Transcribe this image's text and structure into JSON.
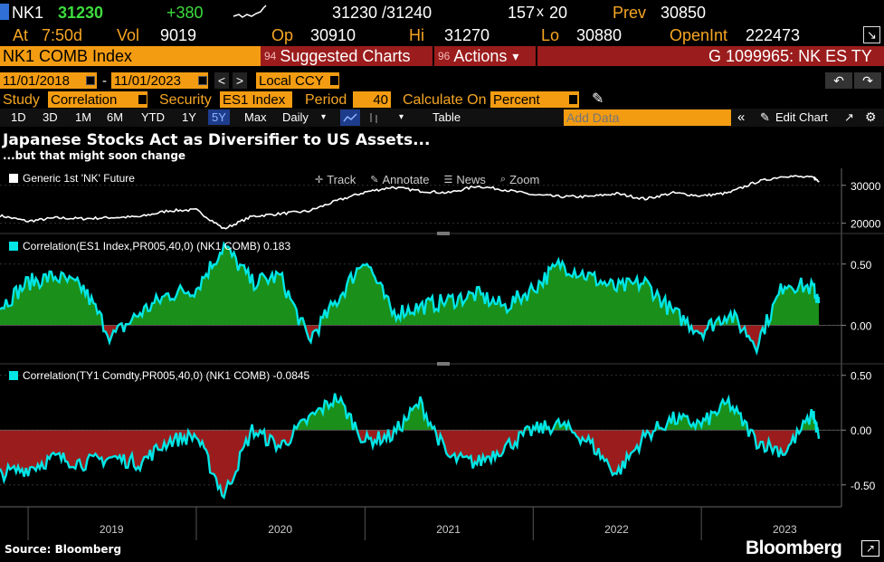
{
  "header": {
    "ticker": "NK1",
    "price": "31230",
    "change": "+380",
    "bid_ask": "31230 /31240",
    "size_left": "157",
    "size_x": "x",
    "size_right": "20",
    "prev_label": "Prev",
    "prev_value": "30850",
    "at_label": "At",
    "at_value": "7:50d",
    "vol_label": "Vol",
    "vol_value": "9019",
    "op_label": "Op",
    "op_value": "30910",
    "hi_label": "Hi",
    "hi_value": "31270",
    "lo_label": "Lo",
    "lo_value": "30880",
    "openint_label": "OpenInt",
    "openint_value": "222473"
  },
  "security_bar": {
    "security": "NK1 COMB Index",
    "suggested_num": "94",
    "suggested_label": "Suggested Charts",
    "actions_num": "96",
    "actions_label": "Actions",
    "actions_caret": "▾",
    "graph_id": "G 1099965: NK ES TY"
  },
  "date_bar": {
    "start": "11/01/2018",
    "dash": "-",
    "end": "11/01/2023",
    "prev_btn": "<",
    "next_btn": ">",
    "currency": "Local CCY",
    "back_icon": "↶",
    "fwd_icon": "↷"
  },
  "study_bar": {
    "study_label": "Study",
    "study_value": "Correlation",
    "security_label": "Security",
    "security_value": "ES1 Index",
    "period_label": "Period",
    "period_value": "40",
    "calc_label": "Calculate On",
    "calc_value": "Percent",
    "pencil_icon": "✎"
  },
  "toolbar": {
    "ranges": [
      "1D",
      "3D",
      "1M",
      "6M",
      "YTD",
      "1Y",
      "5Y",
      "Max"
    ],
    "active_range": "5Y",
    "frequency": "Daily",
    "table": "Table",
    "add_data_placeholder": "Add Data",
    "collapse": "«",
    "edit_chart": "Edit Chart",
    "edit_icon": "✎",
    "expand_icon": "↗",
    "gear_icon": "⚙"
  },
  "title": "Japanese Stocks Act as Diversifier to US Assets...",
  "subtitle": "...but that might soon change",
  "chart_tools": {
    "track": "Track",
    "annotate": "Annotate",
    "news": "News",
    "zoom": "Zoom"
  },
  "footer": {
    "source": "Source: Bloomberg",
    "brand": "Bloomberg"
  },
  "colors": {
    "accent_orange": "#f39c12",
    "price_line": "#ffffff",
    "corr_line": "#00e5e5",
    "positive_fill": "#1a8f1a",
    "negative_fill": "#9b1c1c",
    "red_bar": "#9b1c1c"
  },
  "chart_data": [
    {
      "type": "line",
      "legend": "Generic 1st 'NK' Future",
      "x_range": [
        "2018-11-01",
        "2023-11-01"
      ],
      "ylim": [
        18000,
        34000
      ],
      "yticks": [
        20000,
        30000
      ],
      "ytick_labels": [
        "20000",
        "30000"
      ],
      "series": [
        {
          "name": "Generic 1st 'NK' Future",
          "x": [
            "2018-11",
            "2019-01",
            "2019-03",
            "2019-05",
            "2019-07",
            "2019-09",
            "2019-11",
            "2020-01",
            "2020-03",
            "2020-05",
            "2020-07",
            "2020-09",
            "2020-11",
            "2021-01",
            "2021-03",
            "2021-05",
            "2021-07",
            "2021-09",
            "2021-11",
            "2022-01",
            "2022-03",
            "2022-05",
            "2022-07",
            "2022-09",
            "2022-11",
            "2023-01",
            "2023-03",
            "2023-05",
            "2023-07",
            "2023-09",
            "2023-11"
          ],
          "values": [
            22000,
            20500,
            21400,
            21200,
            21500,
            21700,
            23300,
            23500,
            18500,
            21800,
            22500,
            23200,
            25900,
            28200,
            29500,
            28500,
            28000,
            29800,
            28800,
            27500,
            27000,
            27000,
            27800,
            26400,
            28000,
            27200,
            28000,
            30900,
            32500,
            32000,
            31200
          ]
        }
      ]
    },
    {
      "type": "area",
      "legend": "Correlation(ES1 Index,PR005,40,0) (NK1 COMB) 0.183",
      "x_range": [
        "2018-11-01",
        "2023-11-01"
      ],
      "ylim": [
        -0.3,
        0.72
      ],
      "yticks": [
        0.5,
        0.0
      ],
      "ytick_labels": [
        "0.50",
        "0.00"
      ],
      "series": [
        {
          "name": "Correlation(ES1 Index,PR005,40,0) (NK1 COMB)",
          "x": [
            "2018-11",
            "2019-01",
            "2019-03",
            "2019-05",
            "2019-07",
            "2019-09",
            "2019-11",
            "2020-01",
            "2020-03",
            "2020-05",
            "2020-07",
            "2020-09",
            "2020-11",
            "2021-01",
            "2021-03",
            "2021-05",
            "2021-07",
            "2021-09",
            "2021-11",
            "2022-01",
            "2022-03",
            "2022-05",
            "2022-07",
            "2022-09",
            "2022-11",
            "2023-01",
            "2023-03",
            "2023-05",
            "2023-07",
            "2023-09",
            "2023-11"
          ],
          "values": [
            0.15,
            0.35,
            0.4,
            0.3,
            -0.1,
            0.1,
            0.25,
            0.3,
            0.65,
            0.35,
            0.4,
            -0.12,
            0.2,
            0.55,
            0.1,
            0.15,
            0.2,
            0.25,
            0.15,
            0.3,
            0.5,
            0.4,
            0.3,
            0.35,
            0.1,
            -0.05,
            0.1,
            -0.15,
            0.35,
            0.3,
            0.18
          ]
        }
      ]
    },
    {
      "type": "area",
      "legend": "Correlation(TY1 Comdty,PR005,40,0) (NK1 COMB) -0.0845",
      "x_range": [
        "2018-11-01",
        "2023-11-01"
      ],
      "ylim": [
        -0.7,
        0.58
      ],
      "yticks": [
        0.5,
        0.0,
        -0.5
      ],
      "ytick_labels": [
        "0.50",
        "0.00",
        "-0.50"
      ],
      "series": [
        {
          "name": "Correlation(TY1 Comdty,PR005,40,0) (NK1 COMB)",
          "x": [
            "2018-11",
            "2019-01",
            "2019-03",
            "2019-05",
            "2019-07",
            "2019-09",
            "2019-11",
            "2020-01",
            "2020-03",
            "2020-05",
            "2020-07",
            "2020-09",
            "2020-11",
            "2021-01",
            "2021-03",
            "2021-05",
            "2021-07",
            "2021-09",
            "2021-11",
            "2022-01",
            "2022-03",
            "2022-05",
            "2022-07",
            "2022-09",
            "2022-11",
            "2023-01",
            "2023-03",
            "2023-05",
            "2023-07",
            "2023-09",
            "2023-11"
          ],
          "values": [
            -0.4,
            -0.35,
            -0.25,
            -0.3,
            -0.25,
            -0.3,
            -0.1,
            -0.05,
            -0.6,
            0.0,
            -0.15,
            0.1,
            0.3,
            -0.1,
            -0.05,
            0.25,
            -0.25,
            -0.3,
            -0.15,
            0.0,
            0.05,
            -0.1,
            -0.4,
            -0.05,
            0.1,
            0.05,
            0.25,
            -0.1,
            -0.2,
            0.15,
            -0.08
          ]
        }
      ]
    }
  ],
  "x_axis": {
    "tick_labels": [
      "2019",
      "2020",
      "2021",
      "2022",
      "2023"
    ],
    "tick_dates": [
      "2019-07-01",
      "2020-07-01",
      "2021-07-01",
      "2022-07-01",
      "2023-07-01"
    ]
  }
}
